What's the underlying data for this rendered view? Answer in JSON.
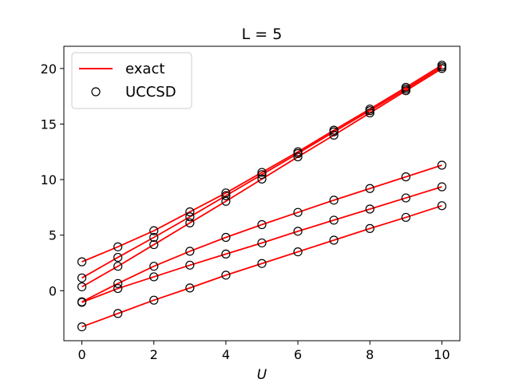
{
  "chart_data": {
    "type": "line",
    "title": "L = 5",
    "xlabel": "U",
    "ylabel": "",
    "xlim": [
      -0.5,
      10.5
    ],
    "ylim": [
      -4.5,
      22.0
    ],
    "xticks": [
      0,
      2,
      4,
      6,
      8,
      10
    ],
    "yticks": [
      0,
      5,
      10,
      15,
      20
    ],
    "grid": false,
    "legend": {
      "position": "upper-left",
      "entries": [
        {
          "label": "exact",
          "marker": "line",
          "color": "#ff0000"
        },
        {
          "label": "UCCSD",
          "marker": "open-circle",
          "color": "#000000"
        }
      ]
    },
    "x": [
      0,
      1,
      2,
      3,
      4,
      5,
      6,
      7,
      8,
      9,
      10
    ],
    "series": [
      {
        "values": [
          2.6,
          3.95,
          5.4,
          7.1,
          8.8,
          10.65,
          12.5,
          14.45,
          16.35,
          18.3,
          20.3
        ]
      },
      {
        "values": [
          1.15,
          3.0,
          4.8,
          6.65,
          8.55,
          10.45,
          12.35,
          14.3,
          16.2,
          18.15,
          20.15
        ]
      },
      {
        "values": [
          0.35,
          2.2,
          4.15,
          6.1,
          8.05,
          10.05,
          12.05,
          14.0,
          16.0,
          18.0,
          20.0
        ]
      },
      {
        "values": [
          -1.0,
          0.65,
          2.2,
          3.55,
          4.8,
          5.95,
          7.05,
          8.15,
          9.2,
          10.25,
          11.3
        ]
      },
      {
        "values": [
          -1.05,
          0.2,
          1.25,
          2.3,
          3.3,
          4.3,
          5.35,
          6.35,
          7.35,
          8.35,
          9.35
        ]
      },
      {
        "values": [
          -3.25,
          -2.05,
          -0.85,
          0.25,
          1.4,
          2.45,
          3.5,
          4.55,
          5.6,
          6.6,
          7.65
        ]
      }
    ],
    "colors": {
      "line": "#ff0000",
      "marker": "#000000"
    }
  }
}
